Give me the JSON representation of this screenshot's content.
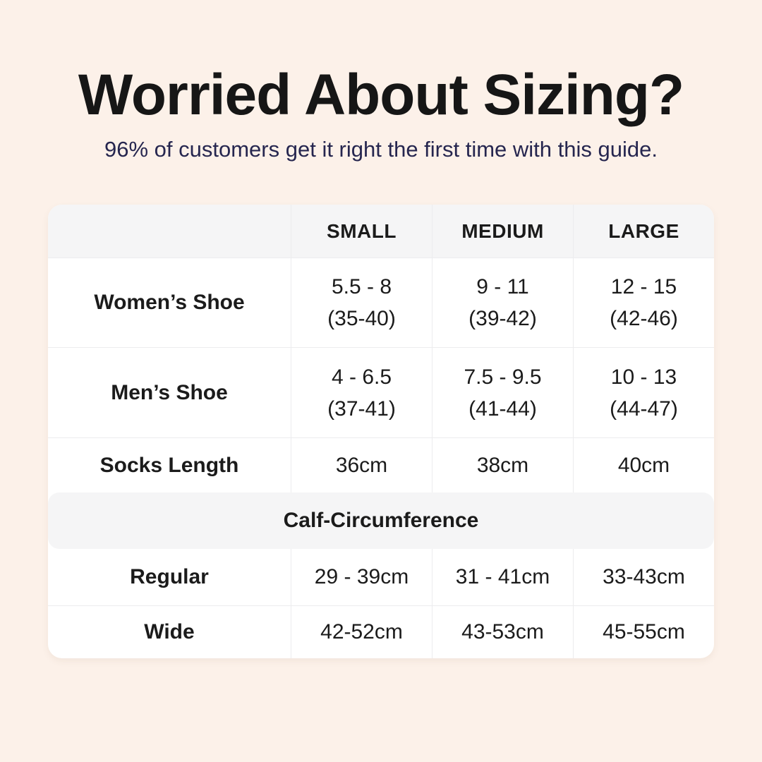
{
  "page": {
    "title": "Worried About Sizing?",
    "subtitle": "96% of customers get it right the first time with this guide.",
    "background_color": "#fcf1e9",
    "accent_navy": "#26264f",
    "card_color": "#ffffff",
    "band_color": "#f5f5f6"
  },
  "table": {
    "column_headers": [
      "SMALL",
      "MEDIUM",
      "LARGE"
    ],
    "rows": [
      {
        "label": "Women’s Shoe",
        "cells": [
          {
            "line1": "5.5 - 8",
            "line2": "(35-40)"
          },
          {
            "line1": "9 - 11",
            "line2": "(39-42)"
          },
          {
            "line1": "12 - 15",
            "line2": "(42-46)"
          }
        ]
      },
      {
        "label": "Men’s Shoe",
        "cells": [
          {
            "line1": "4 - 6.5",
            "line2": "(37-41)"
          },
          {
            "line1": "7.5 - 9.5",
            "line2": "(41-44)"
          },
          {
            "line1": "10 - 13",
            "line2": "(44-47)"
          }
        ]
      },
      {
        "label": "Socks Length",
        "cells": [
          {
            "line1": "36cm"
          },
          {
            "line1": "38cm"
          },
          {
            "line1": "40cm"
          }
        ]
      }
    ],
    "section_header": "Calf-Circumference",
    "section_rows": [
      {
        "label": "Regular",
        "cells": [
          {
            "line1": "29 - 39cm"
          },
          {
            "line1": "31 - 41cm"
          },
          {
            "line1": "33-43cm"
          }
        ]
      },
      {
        "label": "Wide",
        "cells": [
          {
            "line1": "42-52cm"
          },
          {
            "line1": "43-53cm"
          },
          {
            "line1": "45-55cm"
          }
        ]
      }
    ]
  },
  "chart_data": {
    "type": "table",
    "title": "Worried About Sizing?",
    "subtitle": "96% of customers get it right the first time with this guide.",
    "columns": [
      "",
      "SMALL",
      "MEDIUM",
      "LARGE"
    ],
    "rows": [
      [
        "Women’s Shoe",
        "5.5 - 8 (35-40)",
        "9 - 11 (39-42)",
        "12 - 15 (42-46)"
      ],
      [
        "Men’s Shoe",
        "4 - 6.5 (37-41)",
        "7.5 - 9.5 (41-44)",
        "10 - 13 (44-47)"
      ],
      [
        "Socks Length",
        "36cm",
        "38cm",
        "40cm"
      ],
      [
        "Calf-Circumference",
        "",
        "",
        ""
      ],
      [
        "Regular",
        "29 - 39cm",
        "31 - 41cm",
        "33-43cm"
      ],
      [
        "Wide",
        "42-52cm",
        "43-53cm",
        "45-55cm"
      ]
    ]
  }
}
